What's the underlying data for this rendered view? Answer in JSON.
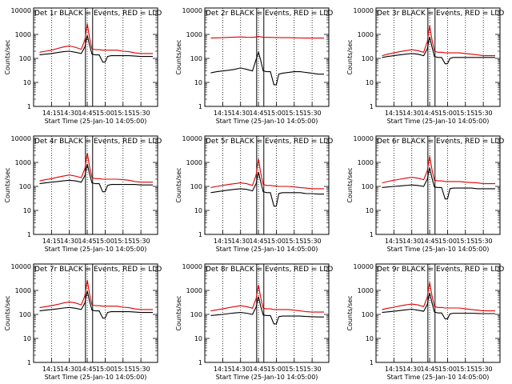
{
  "figure": {
    "time_ticks": [
      "14:15",
      "14:30",
      "14:45",
      "15:00",
      "15:15",
      "15:30"
    ],
    "tick_minutes": [
      15,
      30,
      45,
      60,
      75,
      90
    ],
    "x_range_minutes_after_1400": [
      0,
      104
    ],
    "y_ticks": [
      "1",
      "10",
      "100",
      "1000",
      "10000"
    ],
    "y_range_log10": [
      0,
      4.1
    ],
    "ylabel": "Counts/sec",
    "xlabel": "Start Time (25-Jan-10 14:05:00)",
    "vertical_marker_minutes": [
      43.5,
      49.5
    ],
    "colors": {
      "events": "#000000",
      "lld": "#e00000",
      "axes": "#000000"
    }
  },
  "chart_data": [
    {
      "type": "line",
      "title": "Det 1r BLACK = Events, RED = LLD",
      "xlabel": "Start Time (25-Jan-10 14:05:00)",
      "ylabel": "Counts/sec",
      "y_scale": "log",
      "x_minutes": [
        5,
        10,
        15,
        20,
        25,
        30,
        35,
        40,
        43,
        45,
        47,
        49,
        52,
        55,
        58,
        60,
        62,
        65,
        70,
        75,
        80,
        85,
        90,
        95,
        100
      ],
      "series": [
        {
          "name": "Events",
          "color": "#000000",
          "values": [
            140,
            150,
            160,
            175,
            190,
            200,
            180,
            160,
            300,
            900,
            350,
            150,
            140,
            140,
            70,
            70,
            120,
            130,
            130,
            130,
            130,
            125,
            120,
            120,
            120
          ]
        },
        {
          "name": "LLD",
          "color": "#e00000",
          "values": [
            180,
            200,
            220,
            260,
            300,
            330,
            290,
            240,
            600,
            2800,
            700,
            250,
            230,
            230,
            220,
            220,
            220,
            220,
            220,
            200,
            190,
            170,
            160,
            160,
            160
          ]
        }
      ]
    },
    {
      "type": "line",
      "title": "Det 2r BLACK = Events, RED = LLD",
      "xlabel": "Start Time (25-Jan-10 14:05:00)",
      "ylabel": "Counts/sec",
      "y_scale": "log",
      "x_minutes": [
        5,
        10,
        15,
        20,
        25,
        30,
        35,
        40,
        43,
        45,
        47,
        49,
        52,
        55,
        58,
        60,
        62,
        65,
        70,
        75,
        80,
        85,
        90,
        95,
        100
      ],
      "series": [
        {
          "name": "Events",
          "color": "#000000",
          "values": [
            25,
            28,
            30,
            32,
            35,
            40,
            35,
            30,
            90,
            180,
            80,
            30,
            28,
            28,
            8,
            8,
            22,
            24,
            26,
            28,
            28,
            26,
            24,
            22,
            22
          ]
        },
        {
          "name": "LLD",
          "color": "#e00000",
          "values": [
            700,
            720,
            730,
            750,
            770,
            780,
            760,
            750,
            780,
            820,
            790,
            760,
            750,
            750,
            740,
            740,
            740,
            730,
            730,
            720,
            710,
            700,
            700,
            700,
            700
          ]
        }
      ]
    },
    {
      "type": "line",
      "title": "Det 3r BLACK = Events, RED = LLD",
      "xlabel": "Start Time (25-Jan-10 14:05:00)",
      "ylabel": "Counts/sec",
      "y_scale": "log",
      "x_minutes": [
        5,
        10,
        15,
        20,
        25,
        30,
        35,
        40,
        43,
        45,
        47,
        49,
        52,
        55,
        58,
        60,
        62,
        65,
        70,
        75,
        80,
        85,
        90,
        95,
        100
      ],
      "series": [
        {
          "name": "Events",
          "color": "#000000",
          "values": [
            110,
            120,
            130,
            140,
            150,
            160,
            150,
            130,
            250,
            800,
            300,
            120,
            110,
            110,
            60,
            60,
            100,
            110,
            110,
            110,
            110,
            110,
            110,
            110,
            110
          ]
        },
        {
          "name": "LLD",
          "color": "#e00000",
          "values": [
            130,
            150,
            170,
            190,
            210,
            230,
            210,
            180,
            500,
            2300,
            600,
            200,
            180,
            180,
            170,
            170,
            170,
            170,
            170,
            160,
            150,
            140,
            130,
            130,
            130
          ]
        }
      ]
    },
    {
      "type": "line",
      "title": "Det 4r BLACK = Events, RED = LLD",
      "xlabel": "Start Time (25-Jan-10 14:05:00)",
      "ylabel": "Counts/sec",
      "y_scale": "log",
      "x_minutes": [
        5,
        10,
        15,
        20,
        25,
        30,
        35,
        40,
        43,
        45,
        47,
        49,
        52,
        55,
        58,
        60,
        62,
        65,
        70,
        75,
        80,
        85,
        90,
        95,
        100
      ],
      "series": [
        {
          "name": "Events",
          "color": "#000000",
          "values": [
            130,
            140,
            150,
            160,
            170,
            180,
            170,
            150,
            280,
            850,
            320,
            140,
            130,
            130,
            60,
            60,
            110,
            120,
            120,
            120,
            120,
            120,
            115,
            115,
            115
          ]
        },
        {
          "name": "LLD",
          "color": "#e00000",
          "values": [
            170,
            190,
            210,
            240,
            270,
            300,
            270,
            230,
            550,
            2500,
            650,
            230,
            210,
            210,
            200,
            200,
            200,
            200,
            200,
            190,
            180,
            160,
            150,
            150,
            150
          ]
        }
      ]
    },
    {
      "type": "line",
      "title": "Det 5r BLACK = Events, RED = LLD",
      "xlabel": "Start Time (25-Jan-10 14:05:00)",
      "ylabel": "Counts/sec",
      "y_scale": "log",
      "x_minutes": [
        5,
        10,
        15,
        20,
        25,
        30,
        35,
        40,
        43,
        45,
        47,
        49,
        52,
        55,
        58,
        60,
        62,
        65,
        70,
        75,
        80,
        85,
        90,
        95,
        100
      ],
      "series": [
        {
          "name": "Events",
          "color": "#000000",
          "values": [
            55,
            60,
            65,
            70,
            75,
            80,
            75,
            65,
            130,
            400,
            150,
            60,
            55,
            55,
            15,
            15,
            50,
            55,
            55,
            55,
            55,
            50,
            50,
            48,
            48
          ]
        },
        {
          "name": "LLD",
          "color": "#e00000",
          "values": [
            90,
            100,
            110,
            120,
            130,
            140,
            130,
            110,
            300,
            1400,
            350,
            120,
            110,
            110,
            105,
            105,
            100,
            100,
            100,
            95,
            90,
            85,
            80,
            80,
            80
          ]
        }
      ]
    },
    {
      "type": "line",
      "title": "Det 6r BLACK = Events, RED = LLD",
      "xlabel": "Start Time (25-Jan-10 14:05:00)",
      "ylabel": "Counts/sec",
      "y_scale": "log",
      "x_minutes": [
        5,
        10,
        15,
        20,
        25,
        30,
        35,
        40,
        43,
        45,
        47,
        49,
        52,
        55,
        58,
        60,
        62,
        65,
        70,
        75,
        80,
        85,
        90,
        95,
        100
      ],
      "series": [
        {
          "name": "Events",
          "color": "#000000",
          "values": [
            90,
            95,
            100,
            105,
            110,
            115,
            110,
            100,
            200,
            600,
            220,
            95,
            90,
            90,
            30,
            30,
            80,
            85,
            85,
            85,
            85,
            80,
            80,
            80,
            80
          ]
        },
        {
          "name": "LLD",
          "color": "#e00000",
          "values": [
            140,
            160,
            180,
            200,
            220,
            240,
            220,
            190,
            450,
            1800,
            500,
            180,
            170,
            170,
            160,
            160,
            160,
            160,
            160,
            150,
            145,
            140,
            130,
            130,
            130
          ]
        }
      ]
    },
    {
      "type": "line",
      "title": "Det 7r BLACK = Events, RED = LLD",
      "xlabel": "Start Time (25-Jan-10 14:05:00)",
      "ylabel": "Counts/sec",
      "y_scale": "log",
      "x_minutes": [
        5,
        10,
        15,
        20,
        25,
        30,
        35,
        40,
        43,
        45,
        47,
        49,
        52,
        55,
        58,
        60,
        62,
        65,
        70,
        75,
        80,
        85,
        90,
        95,
        100
      ],
      "series": [
        {
          "name": "Events",
          "color": "#000000",
          "values": [
            140,
            150,
            160,
            170,
            185,
            195,
            180,
            160,
            300,
            950,
            350,
            150,
            140,
            140,
            70,
            70,
            120,
            130,
            130,
            130,
            130,
            125,
            120,
            120,
            120
          ]
        },
        {
          "name": "LLD",
          "color": "#e00000",
          "values": [
            190,
            210,
            230,
            260,
            300,
            330,
            300,
            250,
            600,
            2700,
            700,
            250,
            230,
            230,
            220,
            220,
            220,
            220,
            220,
            200,
            190,
            170,
            160,
            160,
            160
          ]
        }
      ]
    },
    {
      "type": "line",
      "title": "Det 8r BLACK = Events, RED = LLD",
      "xlabel": "Start Time (25-Jan-10 14:05:00)",
      "ylabel": "Counts/sec",
      "y_scale": "log",
      "x_minutes": [
        5,
        10,
        15,
        20,
        25,
        30,
        35,
        40,
        43,
        45,
        47,
        49,
        52,
        55,
        58,
        60,
        62,
        65,
        70,
        75,
        80,
        85,
        90,
        95,
        100
      ],
      "series": [
        {
          "name": "Events",
          "color": "#000000",
          "values": [
            90,
            95,
            100,
            108,
            115,
            120,
            112,
            100,
            200,
            550,
            210,
            95,
            90,
            90,
            40,
            40,
            80,
            85,
            85,
            85,
            85,
            82,
            80,
            78,
            78
          ]
        },
        {
          "name": "LLD",
          "color": "#e00000",
          "values": [
            140,
            155,
            170,
            190,
            210,
            230,
            210,
            180,
            450,
            1700,
            480,
            180,
            170,
            170,
            160,
            160,
            160,
            160,
            160,
            150,
            140,
            130,
            125,
            125,
            125
          ]
        }
      ]
    },
    {
      "type": "line",
      "title": "Det 9r BLACK = Events, RED = LLD",
      "xlabel": "Start Time (25-Jan-10 14:05:00)",
      "ylabel": "Counts/sec",
      "y_scale": "log",
      "x_minutes": [
        5,
        10,
        15,
        20,
        25,
        30,
        35,
        40,
        43,
        45,
        47,
        49,
        52,
        55,
        58,
        60,
        62,
        65,
        70,
        75,
        80,
        85,
        90,
        95,
        100
      ],
      "series": [
        {
          "name": "Events",
          "color": "#000000",
          "values": [
            120,
            128,
            135,
            145,
            155,
            165,
            150,
            135,
            260,
            800,
            300,
            125,
            115,
            115,
            65,
            65,
            105,
            112,
            112,
            112,
            112,
            110,
            108,
            108,
            108
          ]
        },
        {
          "name": "LLD",
          "color": "#e00000",
          "values": [
            160,
            180,
            200,
            225,
            250,
            270,
            250,
            210,
            520,
            2200,
            600,
            210,
            195,
            195,
            185,
            185,
            185,
            185,
            185,
            170,
            160,
            150,
            140,
            140,
            140
          ]
        }
      ]
    }
  ]
}
